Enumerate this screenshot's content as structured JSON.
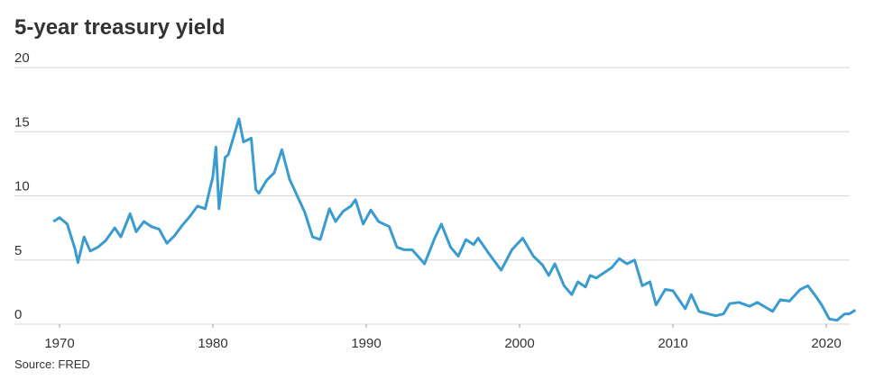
{
  "chart_data": {
    "type": "line",
    "title": "5-year treasury yield",
    "source": "Source: FRED",
    "x": [
      1969.6,
      1970.0,
      1970.5,
      1971.0,
      1971.2,
      1971.6,
      1972.0,
      1972.5,
      1973.0,
      1973.6,
      1974.0,
      1974.6,
      1975.0,
      1975.5,
      1976.0,
      1976.5,
      1977.0,
      1977.5,
      1978.0,
      1978.5,
      1979.0,
      1979.5,
      1980.0,
      1980.2,
      1980.4,
      1980.8,
      1981.0,
      1981.5,
      1981.7,
      1982.0,
      1982.5,
      1982.8,
      1983.0,
      1983.5,
      1984.0,
      1984.5,
      1985.0,
      1985.5,
      1986.0,
      1986.5,
      1987.0,
      1987.6,
      1988.0,
      1988.5,
      1989.0,
      1989.3,
      1989.8,
      1990.3,
      1990.8,
      1991.5,
      1992.0,
      1992.5,
      1993.0,
      1993.8,
      1994.5,
      1994.9,
      1995.5,
      1996.0,
      1996.5,
      1997.0,
      1997.3,
      1998.0,
      1998.8,
      1999.5,
      2000.2,
      2000.9,
      2001.5,
      2001.9,
      2002.3,
      2002.9,
      2003.4,
      2003.8,
      2004.3,
      2004.6,
      2005.0,
      2005.5,
      2006.0,
      2006.5,
      2007.0,
      2007.5,
      2008.0,
      2008.5,
      2008.9,
      2009.5,
      2010.0,
      2010.8,
      2011.2,
      2011.7,
      2012.3,
      2012.8,
      2013.3,
      2013.7,
      2014.3,
      2015.0,
      2015.5,
      2016.5,
      2017.0,
      2017.6,
      2018.3,
      2018.8,
      2019.3,
      2019.7,
      2020.2,
      2020.7,
      2021.2,
      2021.5,
      2021.9
    ],
    "series": [
      {
        "name": "5-year treasury yield",
        "color": "#3a9bd0",
        "values": [
          8.0,
          8.3,
          7.8,
          5.9,
          4.8,
          6.8,
          5.7,
          6.0,
          6.5,
          7.5,
          6.8,
          8.6,
          7.2,
          8.0,
          7.6,
          7.4,
          6.3,
          6.9,
          7.7,
          8.4,
          9.2,
          9.0,
          11.5,
          13.8,
          9.0,
          13.0,
          13.2,
          15.2,
          16.0,
          14.2,
          14.5,
          10.5,
          10.2,
          11.2,
          11.8,
          13.6,
          11.3,
          10.0,
          8.7,
          6.8,
          6.6,
          9.0,
          8.0,
          8.8,
          9.2,
          9.7,
          7.8,
          8.9,
          8.0,
          7.6,
          6.0,
          5.8,
          5.8,
          4.7,
          6.8,
          7.8,
          6.0,
          5.3,
          6.6,
          6.2,
          6.7,
          5.5,
          4.2,
          5.8,
          6.7,
          5.3,
          4.6,
          3.8,
          4.7,
          3.0,
          2.3,
          3.3,
          2.9,
          3.8,
          3.6,
          4.0,
          4.4,
          5.1,
          4.7,
          5.0,
          3.0,
          3.3,
          1.5,
          2.7,
          2.6,
          1.2,
          2.3,
          1.0,
          0.8,
          0.65,
          0.8,
          1.6,
          1.7,
          1.4,
          1.7,
          1.0,
          1.9,
          1.8,
          2.7,
          3.0,
          2.2,
          1.5,
          0.4,
          0.3,
          0.8,
          0.8,
          1.1
        ]
      }
    ],
    "xlim": [
      1967,
      2022
    ],
    "xticks": [
      1970,
      1980,
      1990,
      2000,
      2010,
      2020
    ],
    "ylim": [
      0,
      20
    ],
    "yticks": [
      0,
      5,
      10,
      15,
      20
    ],
    "grid": true
  }
}
